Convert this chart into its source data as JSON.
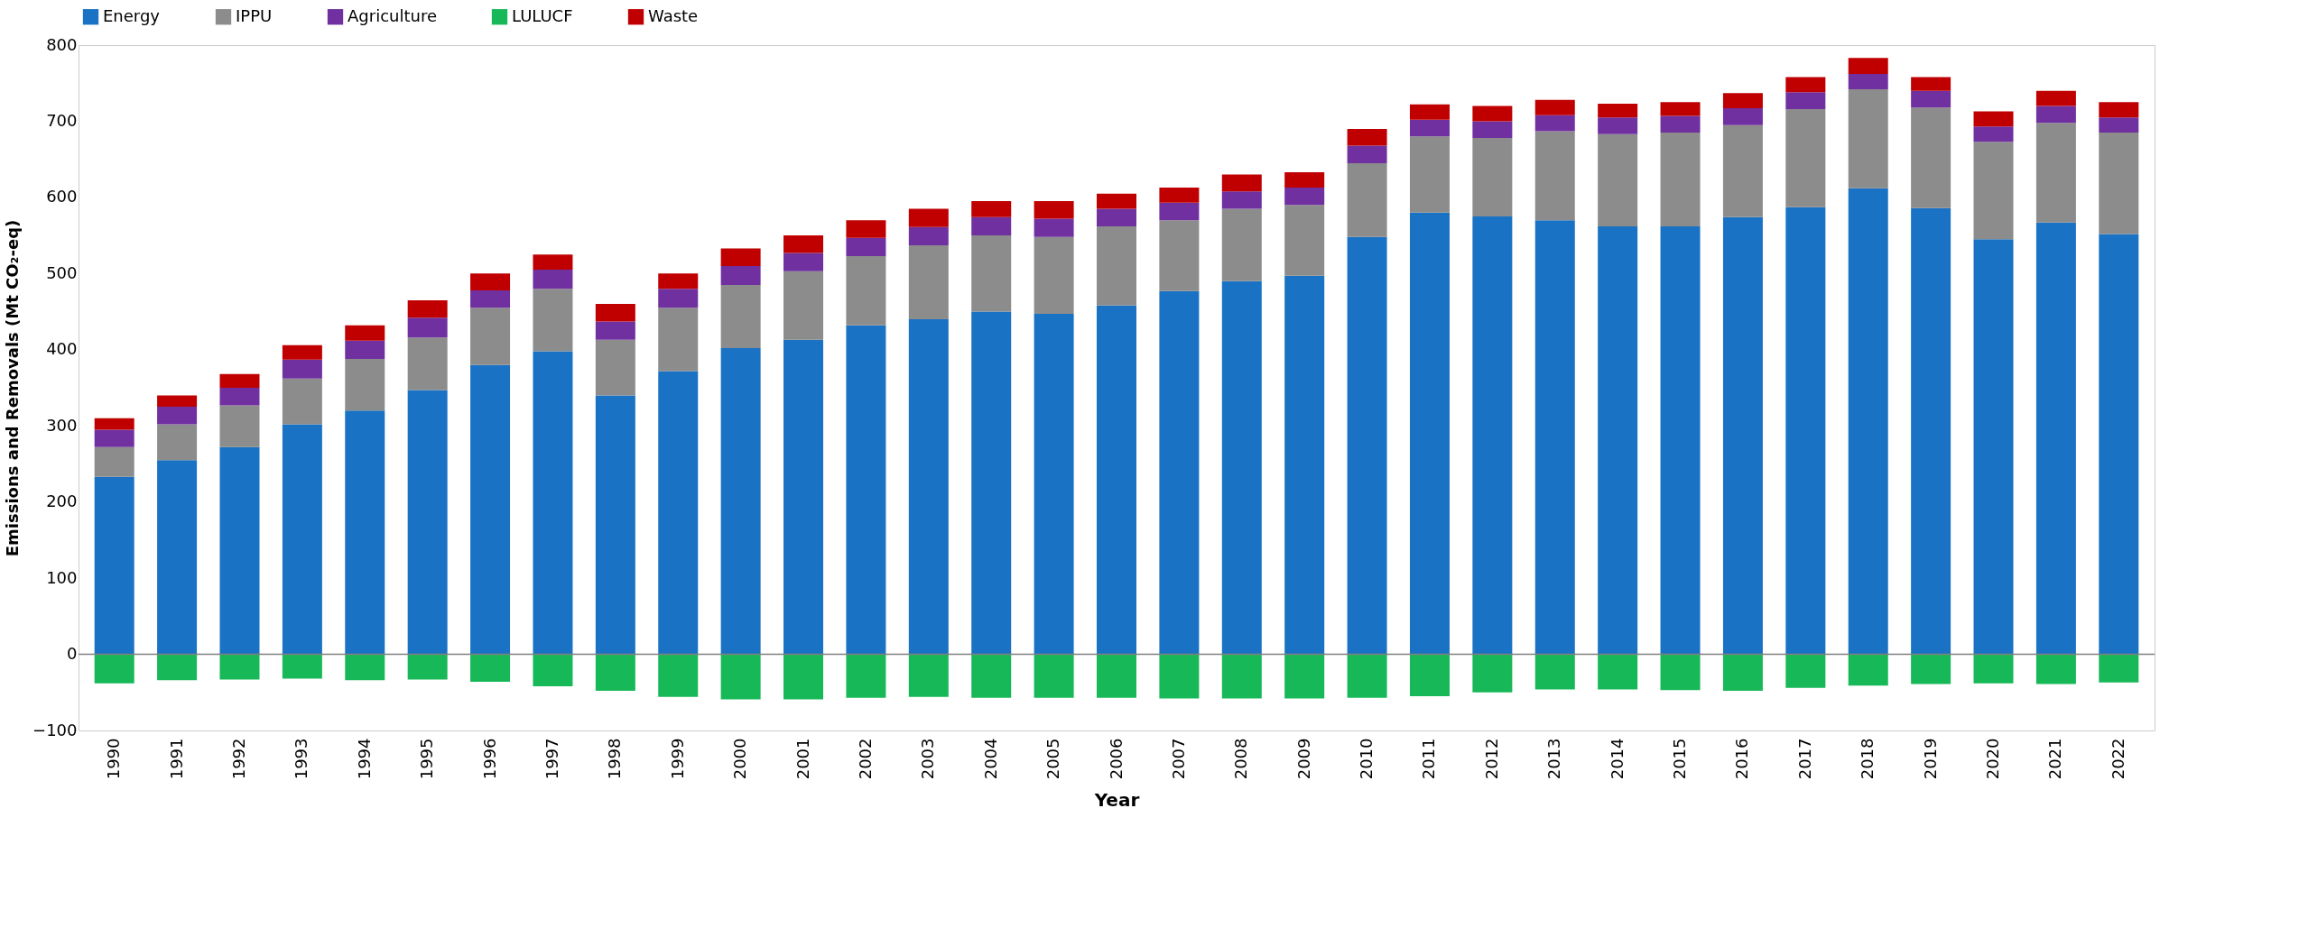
{
  "chart_data": {
    "type": "bar",
    "stacked": true,
    "xlabel": "Year",
    "ylabel": "Emissions and Removals (Mt CO₂-eq)",
    "categories": [
      "1990",
      "1991",
      "1992",
      "1993",
      "1994",
      "1995",
      "1996",
      "1997",
      "1998",
      "1999",
      "2000",
      "2001",
      "2002",
      "2003",
      "2004",
      "2005",
      "2006",
      "2007",
      "2008",
      "2009",
      "2010",
      "2011",
      "2012",
      "2013",
      "2014",
      "2015",
      "2016",
      "2017",
      "2018",
      "2019",
      "2020",
      "2021",
      "2022"
    ],
    "series": [
      {
        "name": "Energy",
        "color": "#1a72c4",
        "values": [
          233,
          255,
          272,
          302,
          320,
          347,
          380,
          398,
          340,
          372,
          402,
          413,
          432,
          440,
          450,
          447,
          458,
          477,
          490,
          497,
          548,
          580,
          575,
          570,
          562,
          562,
          574,
          587,
          612,
          586,
          545,
          567,
          552
        ]
      },
      {
        "name": "IPPU",
        "color": "#8c8c8c",
        "values": [
          39,
          47,
          55,
          60,
          68,
          69,
          75,
          82,
          73,
          83,
          83,
          90,
          91,
          97,
          100,
          101,
          104,
          93,
          95,
          93,
          97,
          100,
          103,
          117,
          121,
          123,
          121,
          129,
          130,
          132,
          128,
          131,
          133
        ]
      },
      {
        "name": "Agriculture",
        "color": "#7030a0",
        "values": [
          23,
          23,
          23,
          25,
          24,
          26,
          23,
          25,
          24,
          25,
          25,
          24,
          24,
          24,
          24,
          24,
          23,
          23,
          23,
          23,
          23,
          22,
          22,
          21,
          22,
          22,
          22,
          22,
          20,
          22,
          20,
          22,
          20
        ]
      },
      {
        "name": "LULUCF",
        "color": "#17b857",
        "values": [
          -38,
          -34,
          -33,
          -32,
          -34,
          -33,
          -36,
          -42,
          -48,
          -56,
          -59,
          -59,
          -57,
          -56,
          -57,
          -57,
          -57,
          -58,
          -58,
          -58,
          -57,
          -55,
          -50,
          -46,
          -46,
          -47,
          -48,
          -44,
          -41,
          -39,
          -38,
          -39,
          -37
        ]
      },
      {
        "name": "Waste",
        "color": "#c00000",
        "values": [
          15,
          15,
          18,
          19,
          20,
          23,
          22,
          20,
          23,
          20,
          23,
          23,
          23,
          24,
          21,
          23,
          20,
          20,
          22,
          20,
          22,
          20,
          20,
          20,
          18,
          18,
          20,
          20,
          21,
          18,
          20,
          20,
          20
        ]
      }
    ],
    "ylim": [
      -100,
      800
    ],
    "yticks": [
      -100,
      0,
      100,
      200,
      300,
      400,
      500,
      600,
      700,
      800
    ],
    "ref_lines": [
      {
        "axis": "y",
        "value": 0,
        "color": "#7f7f7f"
      }
    ],
    "grid": false,
    "legend": "top"
  }
}
